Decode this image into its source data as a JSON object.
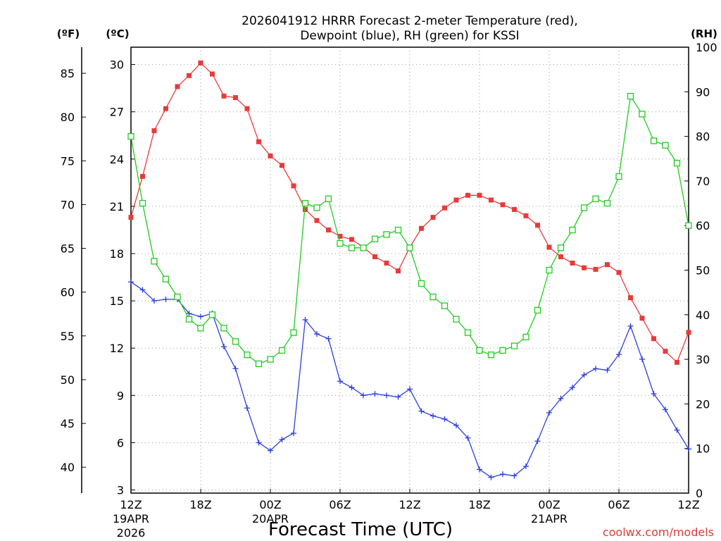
{
  "chart_data": {
    "type": "line",
    "title_line1": "2026041912 HRRR Forecast 2-meter Temperature (red),",
    "title_line2": "Dewpoint (blue), RH (green) for KSSI",
    "xlabel": "Forecast Time (UTC)",
    "credit": "coolwx.com/models",
    "units": {
      "fahrenheit": "(ºF)",
      "celsius": "(ºC)",
      "rh": "(RH)"
    },
    "x_ticks": [
      {
        "hour": 0,
        "label": "12Z",
        "date1": "19APR",
        "date2": "2026"
      },
      {
        "hour": 6,
        "label": "18Z",
        "date1": "",
        "date2": ""
      },
      {
        "hour": 12,
        "label": "00Z",
        "date1": "20APR",
        "date2": ""
      },
      {
        "hour": 18,
        "label": "06Z",
        "date1": "",
        "date2": ""
      },
      {
        "hour": 24,
        "label": "12Z",
        "date1": "",
        "date2": ""
      },
      {
        "hour": 30,
        "label": "18Z",
        "date1": "",
        "date2": ""
      },
      {
        "hour": 36,
        "label": "00Z",
        "date1": "21APR",
        "date2": ""
      },
      {
        "hour": 42,
        "label": "06Z",
        "date1": "",
        "date2": ""
      },
      {
        "hour": 48,
        "label": "12Z",
        "date1": "",
        "date2": ""
      }
    ],
    "celsius_ticks": [
      3,
      6,
      9,
      12,
      15,
      18,
      21,
      24,
      27,
      30
    ],
    "fahrenheit_ticks": [
      40,
      45,
      50,
      55,
      60,
      65,
      70,
      75,
      80,
      85
    ],
    "rh_ticks": [
      0,
      10,
      20,
      30,
      40,
      50,
      60,
      70,
      80,
      90,
      100
    ],
    "ylim_celsius": [
      2.8,
      31.1
    ],
    "ylim_rh": [
      0,
      100
    ],
    "xlim_hours": [
      0,
      48
    ],
    "grid": true,
    "series": [
      {
        "name": "Temperature",
        "color": "#e83a3a",
        "marker": "filled-square",
        "axis": "celsius",
        "values": [
          20.3,
          22.9,
          25.8,
          27.2,
          28.6,
          29.3,
          30.1,
          29.4,
          28.0,
          27.9,
          27.2,
          25.1,
          24.2,
          23.6,
          22.3,
          20.8,
          20.1,
          19.5,
          19.1,
          18.9,
          18.4,
          17.8,
          17.4,
          16.9,
          18.4,
          19.6,
          20.3,
          20.9,
          21.4,
          21.7,
          21.7,
          21.4,
          21.1,
          20.8,
          20.4,
          19.8,
          18.4,
          17.8,
          17.4,
          17.1,
          17.0,
          17.3,
          16.8,
          15.2,
          13.9,
          12.6,
          11.8,
          11.1,
          13.0
        ]
      },
      {
        "name": "Dewpoint",
        "color": "#2b3fe0",
        "marker": "plus",
        "axis": "celsius",
        "values": [
          16.2,
          15.7,
          15.0,
          15.1,
          15.1,
          14.2,
          14.0,
          14.2,
          12.1,
          10.7,
          8.2,
          6.0,
          5.5,
          6.2,
          6.6,
          13.8,
          12.9,
          12.6,
          9.9,
          9.5,
          9.0,
          9.1,
          9.0,
          8.9,
          9.4,
          8.0,
          7.7,
          7.5,
          7.1,
          6.3,
          4.3,
          3.8,
          4.0,
          3.9,
          4.5,
          6.1,
          7.9,
          8.8,
          9.5,
          10.3,
          10.7,
          10.6,
          11.6,
          13.4,
          11.3,
          9.1,
          8.1,
          6.8,
          5.6
        ]
      },
      {
        "name": "RH",
        "color": "#22cc22",
        "marker": "open-square",
        "axis": "rh",
        "values": [
          80,
          65,
          52,
          48,
          44,
          39,
          37,
          40,
          37,
          34,
          31,
          29,
          30,
          32,
          36,
          65,
          64,
          66,
          56,
          55,
          55,
          57,
          58,
          59,
          55,
          47,
          44,
          42,
          39,
          36,
          32,
          31,
          32,
          33,
          35,
          41,
          50,
          55,
          59,
          64,
          66,
          65,
          71,
          89,
          85,
          79,
          78,
          74,
          60
        ]
      }
    ]
  }
}
